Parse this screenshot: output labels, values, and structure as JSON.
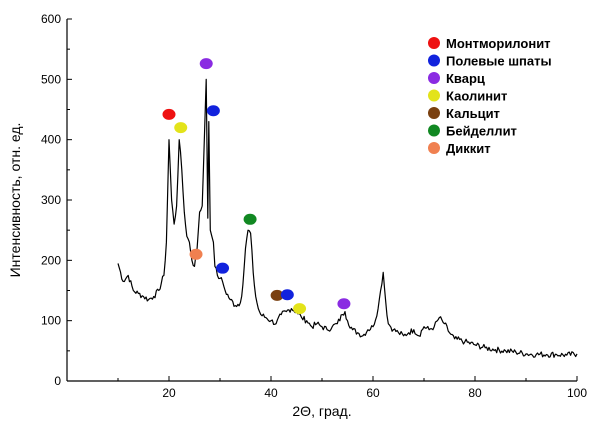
{
  "chart_data": {
    "type": "line",
    "title": "",
    "xlabel": "2Θ, град.",
    "ylabel": "Интенсивность, отн. ед.",
    "xlim": [
      0,
      100
    ],
    "ylim": [
      0,
      600
    ],
    "xticks": [
      20,
      40,
      60,
      80,
      100
    ],
    "yticks": [
      0,
      100,
      200,
      300,
      400,
      500,
      600
    ],
    "grid": false,
    "legend_position": "top-right",
    "line_color": "#000000",
    "series": [
      {
        "name": "",
        "x": [
          10,
          11,
          12,
          13,
          14,
          15,
          16,
          17,
          18,
          19,
          19.5,
          20,
          20.5,
          21,
          21.5,
          22,
          22.5,
          23,
          23.5,
          24,
          24.5,
          25,
          25.5,
          26,
          26.5,
          27,
          27.3,
          27.6,
          27.8,
          28.1,
          28.4,
          28.7,
          29,
          29.5,
          30,
          30.5,
          31,
          32,
          33,
          34,
          34.5,
          35,
          35.5,
          36,
          36.5,
          37,
          37.5,
          38,
          39,
          40,
          41,
          42,
          43,
          44,
          45,
          46,
          47,
          48,
          49,
          50,
          51,
          52,
          53,
          54,
          54.5,
          55,
          56,
          57,
          58,
          59,
          60,
          61,
          61.5,
          62,
          62.5,
          63,
          64,
          65,
          66,
          67,
          68,
          69,
          70,
          71,
          72,
          73,
          74,
          75,
          76,
          78,
          80,
          82,
          84,
          86,
          88,
          90,
          92,
          94,
          96,
          98,
          100
        ],
        "y": [
          195,
          165,
          175,
          150,
          145,
          140,
          135,
          140,
          150,
          175,
          230,
          400,
          300,
          260,
          290,
          400,
          350,
          280,
          240,
          230,
          200,
          190,
          220,
          280,
          290,
          420,
          500,
          270,
          430,
          250,
          240,
          230,
          190,
          175,
          170,
          165,
          150,
          135,
          125,
          130,
          160,
          220,
          250,
          245,
          180,
          140,
          120,
          110,
          105,
          100,
          95,
          110,
          115,
          120,
          115,
          105,
          100,
          90,
          95,
          90,
          85,
          90,
          95,
          110,
          115,
          100,
          85,
          80,
          75,
          85,
          90,
          120,
          150,
          180,
          130,
          95,
          85,
          80,
          75,
          80,
          85,
          75,
          90,
          85,
          90,
          105,
          95,
          80,
          70,
          65,
          60,
          55,
          52,
          50,
          48,
          45,
          44,
          44,
          44,
          43,
          45
        ]
      }
    ],
    "legend": [
      {
        "label": "Монтморилонит",
        "color": "#ee1111"
      },
      {
        "label": "Полевые шпаты",
        "color": "#1122dd"
      },
      {
        "label": "Кварц",
        "color": "#8a2be2"
      },
      {
        "label": "Каолинит",
        "color": "#e3e31a"
      },
      {
        "label": "Кальцит",
        "color": "#7a4010"
      },
      {
        "label": "Бейделлит",
        "color": "#118822"
      },
      {
        "label": "Диккит",
        "color": "#f08050"
      }
    ],
    "markers": [
      {
        "mineral": "Монтморилонит",
        "x": 20,
        "y": 442
      },
      {
        "mineral": "Каолинит",
        "x": 22.3,
        "y": 420
      },
      {
        "mineral": "Кварц",
        "x": 27.3,
        "y": 526
      },
      {
        "mineral": "Полевые шпаты",
        "x": 28.7,
        "y": 448
      },
      {
        "mineral": "Диккит",
        "x": 25.3,
        "y": 210
      },
      {
        "mineral": "Полевые шпаты",
        "x": 30.5,
        "y": 187
      },
      {
        "mineral": "Бейделлит",
        "x": 35.9,
        "y": 268
      },
      {
        "mineral": "Кальцит",
        "x": 41.2,
        "y": 142
      },
      {
        "mineral": "Полевые шпаты",
        "x": 43.2,
        "y": 143
      },
      {
        "mineral": "Каолинит",
        "x": 45.6,
        "y": 120
      },
      {
        "mineral": "Кварц",
        "x": 54.3,
        "y": 128
      }
    ]
  }
}
